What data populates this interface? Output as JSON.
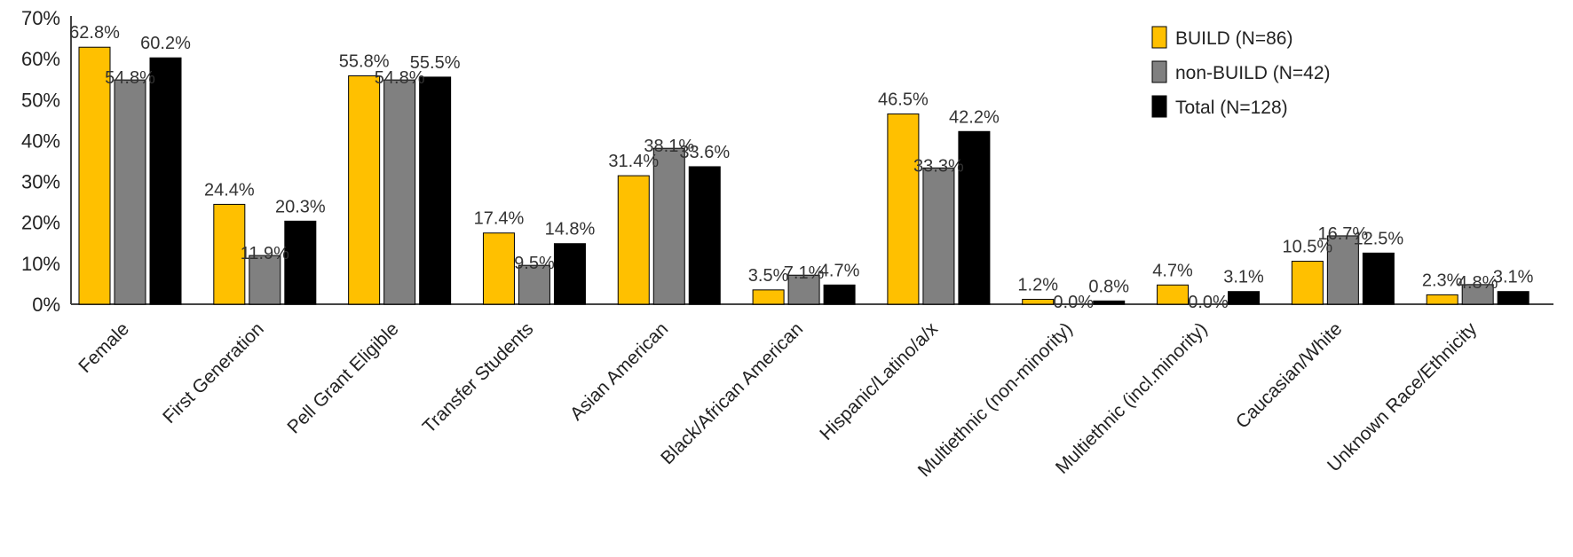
{
  "chart_data": {
    "type": "bar",
    "categories": [
      "Female",
      "First Generation",
      "Pell Grant Eligible",
      "Transfer Students",
      "Asian American",
      "Black/African American",
      "Hispanic/Latino/a/x",
      "Multiethnic (non-minority)",
      "Multiethnic (incl.minority)",
      "Caucasian/White",
      "Unknown Race/Ethnicity"
    ],
    "series": [
      {
        "name": "BUILD (N=86)",
        "color": "#FFC000",
        "values": [
          62.8,
          24.4,
          55.8,
          17.4,
          31.4,
          3.5,
          46.5,
          1.2,
          4.7,
          10.5,
          2.3
        ],
        "labels": [
          "62.8%",
          "24.4%",
          "55.8%",
          "17.4%",
          "31.4%",
          "3.5%",
          "46.5%",
          "1.2%",
          "4.7%",
          "10.5%",
          "2.3%"
        ]
      },
      {
        "name": "non-BUILD (N=42)",
        "color": "#808080",
        "values": [
          54.8,
          11.9,
          54.8,
          9.5,
          38.1,
          7.1,
          33.3,
          0.0,
          0.0,
          16.7,
          4.8
        ],
        "labels": [
          "54.8%",
          "11.9%",
          "54.8%",
          "9.5%",
          "38.1%",
          "7.1%",
          "33.3%",
          "0.0%",
          "0.0%",
          "16.7%",
          "4.8%"
        ]
      },
      {
        "name": "Total (N=128)",
        "color": "#000000",
        "values": [
          60.2,
          20.3,
          55.5,
          14.8,
          33.6,
          4.7,
          42.2,
          0.8,
          3.1,
          12.5,
          3.1
        ],
        "labels": [
          "60.2%",
          "20.3%",
          "55.5%",
          "14.8%",
          "33.6%",
          "4.7%",
          "42.2%",
          "0.8%",
          "3.1%",
          "12.5%",
          "3.1%"
        ]
      }
    ],
    "ylim": [
      0,
      70
    ],
    "yticks": [
      "0%",
      "10%",
      "20%",
      "30%",
      "40%",
      "50%",
      "60%",
      "70%"
    ],
    "title": "",
    "xlabel": "",
    "ylabel": "",
    "grid": false,
    "legend_position": "top-right"
  }
}
